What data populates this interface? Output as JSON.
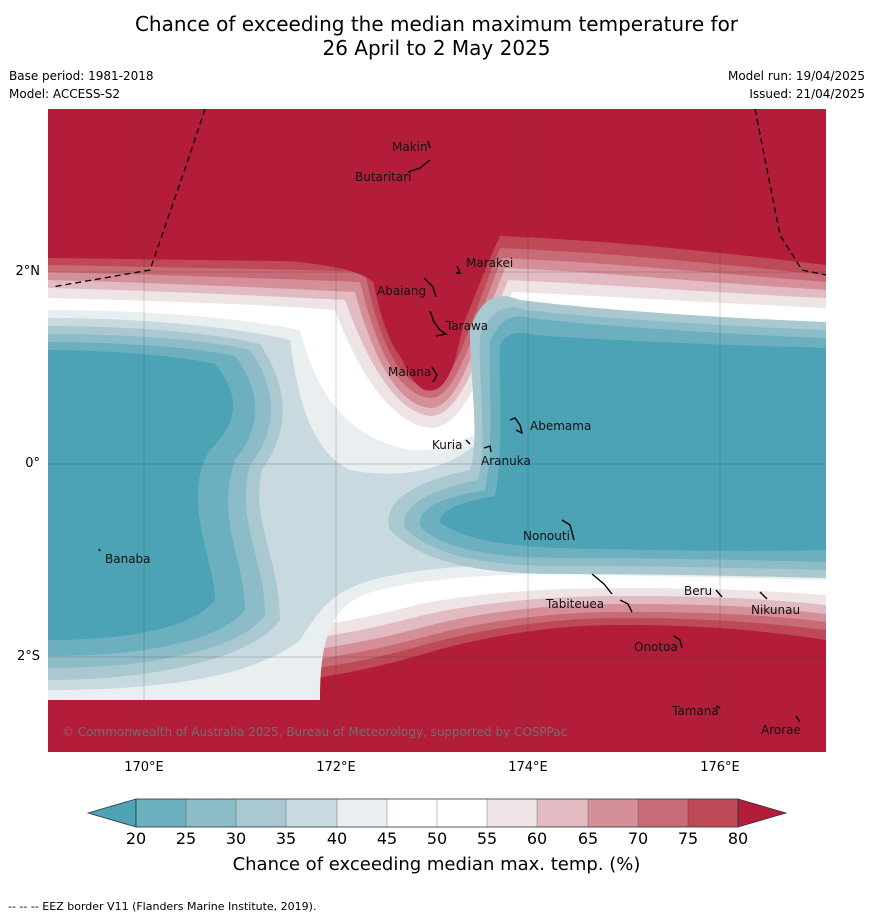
{
  "title_line1": "Chance of exceeding the median maximum temperature for",
  "title_line2": "26 April to 2 May 2025",
  "meta_left": [
    "Base period: 1981-2018",
    "Model: ACCESS-S2"
  ],
  "meta_right": [
    "Model run: 19/04/2025",
    "Issued: 21/04/2025"
  ],
  "map": {
    "x_ticks": [
      "170°E",
      "172°E",
      "174°E",
      "176°E"
    ],
    "y_ticks": [
      "2°N",
      "0°",
      "2°S"
    ],
    "places": [
      "Makin",
      "Butaritari",
      "Marakei",
      "Abaiang",
      "Tarawa",
      "Maiana",
      "Abemama",
      "Kuria",
      "Aranuka",
      "Nonouti",
      "Banaba",
      "Beru",
      "Tabiteuea",
      "Nikunau",
      "Onotoa",
      "Tamana",
      "Arorae"
    ],
    "copyright": "© Commonwealth of Australia 2025, Bureau of Meteorology, supported by COSPPac",
    "colors": {
      "c20": "#4ba3b5",
      "c25": "#6cb0bf",
      "c30": "#8cbcc8",
      "c35": "#a9c8d0",
      "c40": "#c8d9df",
      "c45": "#e9eef1",
      "c55": "#ffffff",
      "c60": "#eee4e6",
      "c65": "#e2bac1",
      "c70": "#d48f99",
      "c75": "#c86b76",
      "c80": "#bf4a57",
      "c80plus": "#b41d3a"
    }
  },
  "colorbar": {
    "ticks": [
      "20",
      "25",
      "30",
      "35",
      "40",
      "45",
      "50",
      "55",
      "60",
      "65",
      "70",
      "75",
      "80"
    ],
    "label": "Chance of exceeding median max. temp. (%)"
  },
  "footnote": "--  --  -- EEZ border V11 (Flanders Marine Institute, 2019)."
}
